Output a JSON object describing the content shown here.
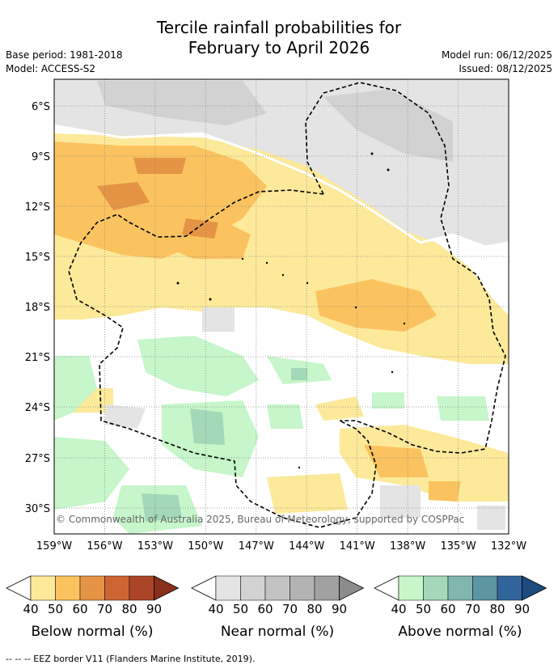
{
  "title_line1": "Tercile rainfall probabilities for",
  "title_line2": "February to April 2026",
  "meta_left": {
    "base_period": "Base period: 1981-2018",
    "model": "Model: ACCESS-S2"
  },
  "meta_right": {
    "model_run": "Model run: 06/12/2025",
    "issued": "Issued: 08/12/2025"
  },
  "copyright": "© Commonwealth of Australia 2025, Bureau of Meteorology, supported by COSPPac",
  "lat_labels": [
    "6°S",
    "9°S",
    "12°S",
    "15°S",
    "18°S",
    "21°S",
    "24°S",
    "27°S",
    "30°S"
  ],
  "lon_labels": [
    "159°W",
    "156°W",
    "153°W",
    "150°W",
    "147°W",
    "144°W",
    "141°W",
    "138°W",
    "135°W",
    "132°W"
  ],
  "legend": [
    {
      "caption": "Below normal (%)",
      "ticks": [
        "40",
        "50",
        "60",
        "70",
        "80",
        "90"
      ],
      "colors": [
        "#fde99a",
        "#fbc35f",
        "#e59445",
        "#cd6533",
        "#ac4527",
        "#8a2f1c"
      ]
    },
    {
      "caption": "Near normal (%)",
      "ticks": [
        "40",
        "50",
        "60",
        "70",
        "80",
        "90"
      ],
      "colors": [
        "#e4e4e4",
        "#d2d2d2",
        "#c3c3c3",
        "#b3b3b3",
        "#a1a1a1",
        "#8c8c8c"
      ]
    },
    {
      "caption": "Above normal (%)",
      "ticks": [
        "40",
        "50",
        "60",
        "70",
        "80",
        "90"
      ],
      "colors": [
        "#c6f6c9",
        "#a3d8b8",
        "#7fb6ae",
        "#5b96a1",
        "#31649a",
        "#1c4b7e"
      ]
    }
  ],
  "footnote": "--  --  -- EEZ border V11 (Flanders Marine Institute, 2019).",
  "colors": {
    "grid": "#888888",
    "frame": "#000000",
    "white_contour": "#ffffff"
  }
}
